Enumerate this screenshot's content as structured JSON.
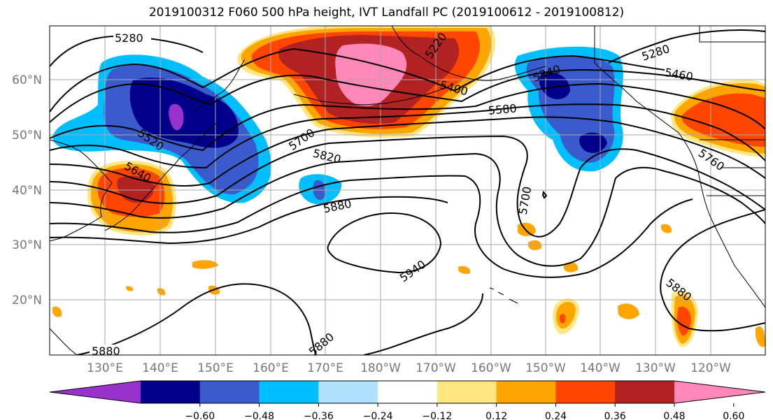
{
  "title": "2019100312 F060 500 hPa height, IVT Landfall PC (2019100612 - 2019100812)",
  "lat_labels": [
    "60°N",
    "50°N",
    "40°N",
    "30°N",
    "20°N"
  ],
  "lon_labels": [
    "130°E",
    "140°E",
    "150°E",
    "160°E",
    "170°E",
    "180°W",
    "170°W",
    "160°W",
    "150°W",
    "140°W",
    "130°W",
    "120°W"
  ],
  "colorbar": {
    "ticks": [
      "−0.60",
      "−0.48",
      "−0.36",
      "−0.24",
      "−0.12",
      "0.12",
      "0.24",
      "0.36",
      "0.48",
      "0.60"
    ],
    "colors": [
      "#9932cc",
      "#00008b",
      "#3a5bcd",
      "#00bfff",
      "#b0e2ff",
      "#ffffff",
      "#ffe680",
      "#ffa500",
      "#ff4500",
      "#b22222",
      "#ff88b8"
    ]
  },
  "contour_labels": [
    "5280",
    "5400",
    "5460",
    "5520",
    "5580",
    "5640",
    "5700",
    "5760",
    "5820",
    "5880",
    "5940",
    "5220",
    "5340"
  ]
}
